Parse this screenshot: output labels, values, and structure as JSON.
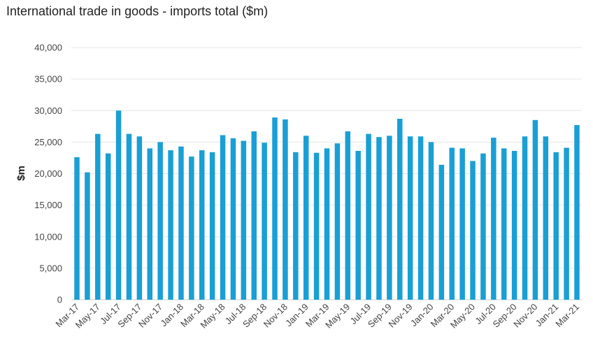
{
  "chart_data": {
    "type": "bar",
    "title": "International trade in goods - imports total ($m)",
    "xlabel": "",
    "ylabel": "$m",
    "ylim": [
      0,
      40000
    ],
    "yticks": [
      0,
      5000,
      10000,
      15000,
      20000,
      25000,
      30000,
      35000,
      40000
    ],
    "ytick_labels": [
      "0",
      "5,000",
      "10,000",
      "15,000",
      "20,000",
      "25,000",
      "30,000",
      "35,000",
      "40,000"
    ],
    "grid": true,
    "bar_color": "#1a9fd5",
    "categories": [
      "Mar-17",
      "Apr-17",
      "May-17",
      "Jun-17",
      "Jul-17",
      "Aug-17",
      "Sep-17",
      "Oct-17",
      "Nov-17",
      "Dec-17",
      "Jan-18",
      "Feb-18",
      "Mar-18",
      "Apr-18",
      "May-18",
      "Jun-18",
      "Jul-18",
      "Aug-18",
      "Sep-18",
      "Oct-18",
      "Nov-18",
      "Dec-18",
      "Jan-19",
      "Feb-19",
      "Mar-19",
      "Apr-19",
      "May-19",
      "Jun-19",
      "Jul-19",
      "Aug-19",
      "Sep-19",
      "Oct-19",
      "Nov-19",
      "Dec-19",
      "Jan-20",
      "Feb-20",
      "Mar-20",
      "Apr-20",
      "May-20",
      "Jun-20",
      "Jul-20",
      "Aug-20",
      "Sep-20",
      "Oct-20",
      "Nov-20",
      "Dec-20",
      "Jan-21",
      "Feb-21",
      "Mar-21"
    ],
    "visible_tick_labels": [
      "Mar-17",
      "May-17",
      "Jul-17",
      "Sep-17",
      "Nov-17",
      "Jan-18",
      "Mar-18",
      "May-18",
      "Jul-18",
      "Sep-18",
      "Nov-18",
      "Jan-19",
      "Mar-19",
      "May-19",
      "Jul-19",
      "Sep-19",
      "Nov-19",
      "Jan-20",
      "Mar-20",
      "May-20",
      "Jul-20",
      "Sep-20",
      "Nov-20",
      "Jan-21",
      "Mar-21"
    ],
    "values": [
      22600,
      20200,
      26300,
      23200,
      30000,
      26300,
      25900,
      24000,
      25000,
      23700,
      24300,
      22700,
      23700,
      23400,
      26100,
      25600,
      25200,
      26700,
      24900,
      28900,
      28600,
      23400,
      26000,
      23300,
      24000,
      24800,
      26700,
      23600,
      26300,
      25800,
      26000,
      28700,
      25900,
      25900,
      25000,
      21400,
      24100,
      24000,
      22000,
      23200,
      25700,
      24000,
      23600,
      25900,
      28500,
      25900,
      23400,
      24100,
      27700
    ]
  }
}
